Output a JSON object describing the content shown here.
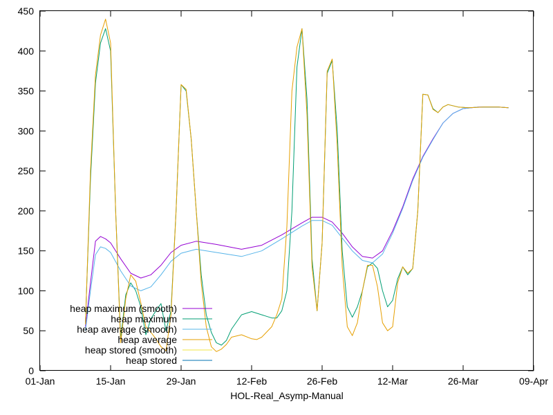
{
  "chart_data": {
    "type": "line",
    "title": "",
    "xlabel": "HOL-Real_Asymp-Manual",
    "ylabel": "",
    "xlim": [
      "2025-01-01",
      "2025-04-09"
    ],
    "ylim": [
      0,
      450
    ],
    "x_ticks": [
      {
        "date": "2025-01-01",
        "label": "01-Jan"
      },
      {
        "date": "2025-01-15",
        "label": "15-Jan"
      },
      {
        "date": "2025-01-29",
        "label": "29-Jan"
      },
      {
        "date": "2025-02-12",
        "label": "12-Feb"
      },
      {
        "date": "2025-02-26",
        "label": "26-Feb"
      },
      {
        "date": "2025-03-12",
        "label": "12-Mar"
      },
      {
        "date": "2025-03-26",
        "label": "26-Mar"
      },
      {
        "date": "2025-04-09",
        "label": "09-Apr"
      }
    ],
    "y_ticks": [
      0,
      50,
      100,
      150,
      200,
      250,
      300,
      350,
      400,
      450
    ],
    "grid": false,
    "legend_position": "bottom-left",
    "series": [
      {
        "name": "heap maximum (smooth)",
        "color": "#9400d3",
        "points": [
          [
            "2025-01-10",
            55
          ],
          [
            "2025-01-11",
            110
          ],
          [
            "2025-01-12",
            162
          ],
          [
            "2025-01-13",
            168
          ],
          [
            "2025-01-14",
            165
          ],
          [
            "2025-01-15",
            160
          ],
          [
            "2025-01-17",
            140
          ],
          [
            "2025-01-19",
            122
          ],
          [
            "2025-01-21",
            116
          ],
          [
            "2025-01-23",
            120
          ],
          [
            "2025-01-25",
            132
          ],
          [
            "2025-01-27",
            148
          ],
          [
            "2025-01-29",
            157
          ],
          [
            "2025-02-01",
            162
          ],
          [
            "2025-02-05",
            158
          ],
          [
            "2025-02-10",
            152
          ],
          [
            "2025-02-14",
            157
          ],
          [
            "2025-02-18",
            170
          ],
          [
            "2025-02-22",
            185
          ],
          [
            "2025-02-24",
            192
          ],
          [
            "2025-02-26",
            192
          ],
          [
            "2025-02-28",
            186
          ],
          [
            "2025-03-02",
            172
          ],
          [
            "2025-03-04",
            155
          ],
          [
            "2025-03-06",
            143
          ],
          [
            "2025-03-08",
            141
          ],
          [
            "2025-03-10",
            150
          ],
          [
            "2025-03-12",
            175
          ],
          [
            "2025-03-14",
            205
          ],
          [
            "2025-03-16",
            240
          ],
          [
            "2025-03-18",
            268
          ],
          [
            "2025-03-20",
            290
          ],
          [
            "2025-03-22",
            310
          ],
          [
            "2025-03-24",
            322
          ],
          [
            "2025-03-26",
            328
          ],
          [
            "2025-03-29",
            330
          ],
          [
            "2025-04-02",
            330
          ],
          [
            "2025-04-04",
            329
          ]
        ]
      },
      {
        "name": "heap maximum",
        "color": "#009e73",
        "points": [
          [
            "2025-01-10",
            60
          ],
          [
            "2025-01-11",
            240
          ],
          [
            "2025-01-12",
            360
          ],
          [
            "2025-01-13",
            410
          ],
          [
            "2025-01-14",
            428
          ],
          [
            "2025-01-15",
            400
          ],
          [
            "2025-01-16",
            200
          ],
          [
            "2025-01-17",
            40
          ],
          [
            "2025-01-18",
            95
          ],
          [
            "2025-01-19",
            110
          ],
          [
            "2025-01-20",
            100
          ],
          [
            "2025-01-21",
            80
          ],
          [
            "2025-01-22",
            45
          ],
          [
            "2025-01-23",
            65
          ],
          [
            "2025-01-24",
            75
          ],
          [
            "2025-01-25",
            84
          ],
          [
            "2025-01-26",
            50
          ],
          [
            "2025-01-27",
            75
          ],
          [
            "2025-01-28",
            200
          ],
          [
            "2025-01-29",
            358
          ],
          [
            "2025-01-30",
            350
          ],
          [
            "2025-01-31",
            290
          ],
          [
            "2025-02-01",
            200
          ],
          [
            "2025-02-02",
            120
          ],
          [
            "2025-02-03",
            70
          ],
          [
            "2025-02-04",
            48
          ],
          [
            "2025-02-05",
            35
          ],
          [
            "2025-02-06",
            32
          ],
          [
            "2025-02-07",
            38
          ],
          [
            "2025-02-08",
            52
          ],
          [
            "2025-02-10",
            70
          ],
          [
            "2025-02-12",
            74
          ],
          [
            "2025-02-14",
            70
          ],
          [
            "2025-02-16",
            66
          ],
          [
            "2025-02-17",
            66
          ],
          [
            "2025-02-18",
            75
          ],
          [
            "2025-02-19",
            100
          ],
          [
            "2025-02-20",
            200
          ],
          [
            "2025-02-21",
            380
          ],
          [
            "2025-02-22",
            428
          ],
          [
            "2025-02-23",
            340
          ],
          [
            "2025-02-24",
            140
          ],
          [
            "2025-02-25",
            75
          ],
          [
            "2025-02-26",
            160
          ],
          [
            "2025-02-27",
            372
          ],
          [
            "2025-02-28",
            388
          ],
          [
            "2025-03-01",
            300
          ],
          [
            "2025-03-02",
            150
          ],
          [
            "2025-03-03",
            80
          ],
          [
            "2025-03-04",
            67
          ],
          [
            "2025-03-05",
            80
          ],
          [
            "2025-03-06",
            100
          ],
          [
            "2025-03-07",
            130
          ],
          [
            "2025-03-08",
            135
          ],
          [
            "2025-03-09",
            128
          ],
          [
            "2025-03-10",
            100
          ],
          [
            "2025-03-11",
            80
          ],
          [
            "2025-03-12",
            88
          ],
          [
            "2025-03-13",
            115
          ],
          [
            "2025-03-14",
            130
          ],
          [
            "2025-03-15",
            120
          ],
          [
            "2025-03-16",
            128
          ],
          [
            "2025-03-17",
            200
          ],
          [
            "2025-03-18",
            346
          ],
          [
            "2025-03-19",
            345
          ],
          [
            "2025-03-20",
            328
          ],
          [
            "2025-03-21",
            323
          ],
          [
            "2025-03-22",
            330
          ],
          [
            "2025-03-23",
            333
          ],
          [
            "2025-03-25",
            330
          ],
          [
            "2025-03-27",
            329
          ],
          [
            "2025-03-30",
            330
          ],
          [
            "2025-04-02",
            330
          ],
          [
            "2025-04-04",
            329
          ]
        ]
      },
      {
        "name": "heap average (smooth)",
        "color": "#56b4e9",
        "points": [
          [
            "2025-01-10",
            50
          ],
          [
            "2025-01-11",
            100
          ],
          [
            "2025-01-12",
            145
          ],
          [
            "2025-01-13",
            155
          ],
          [
            "2025-01-14",
            153
          ],
          [
            "2025-01-15",
            148
          ],
          [
            "2025-01-17",
            125
          ],
          [
            "2025-01-19",
            106
          ],
          [
            "2025-01-21",
            100
          ],
          [
            "2025-01-23",
            105
          ],
          [
            "2025-01-25",
            120
          ],
          [
            "2025-01-27",
            137
          ],
          [
            "2025-01-29",
            147
          ],
          [
            "2025-02-01",
            152
          ],
          [
            "2025-02-05",
            148
          ],
          [
            "2025-02-10",
            143
          ],
          [
            "2025-02-14",
            150
          ],
          [
            "2025-02-18",
            165
          ],
          [
            "2025-02-22",
            181
          ],
          [
            "2025-02-24",
            188
          ],
          [
            "2025-02-26",
            188
          ],
          [
            "2025-02-28",
            182
          ],
          [
            "2025-03-02",
            166
          ],
          [
            "2025-03-04",
            150
          ],
          [
            "2025-03-06",
            138
          ],
          [
            "2025-03-08",
            135
          ],
          [
            "2025-03-10",
            146
          ],
          [
            "2025-03-12",
            172
          ],
          [
            "2025-03-14",
            203
          ],
          [
            "2025-03-16",
            238
          ],
          [
            "2025-03-18",
            267
          ],
          [
            "2025-03-20",
            289
          ],
          [
            "2025-03-22",
            310
          ],
          [
            "2025-03-24",
            322
          ],
          [
            "2025-03-26",
            328
          ],
          [
            "2025-03-29",
            330
          ],
          [
            "2025-04-02",
            330
          ],
          [
            "2025-04-04",
            329
          ]
        ]
      },
      {
        "name": "heap average",
        "color": "#e69f00",
        "points": [
          [
            "2025-01-10",
            58
          ],
          [
            "2025-01-11",
            250
          ],
          [
            "2025-01-12",
            370
          ],
          [
            "2025-01-13",
            420
          ],
          [
            "2025-01-14",
            440
          ],
          [
            "2025-01-15",
            410
          ],
          [
            "2025-01-16",
            200
          ],
          [
            "2025-01-17",
            35
          ],
          [
            "2025-01-18",
            90
          ],
          [
            "2025-01-19",
            120
          ],
          [
            "2025-01-20",
            112
          ],
          [
            "2025-01-21",
            85
          ],
          [
            "2025-01-22",
            55
          ],
          [
            "2025-01-23",
            48
          ],
          [
            "2025-01-24",
            40
          ],
          [
            "2025-01-25",
            30
          ],
          [
            "2025-01-26",
            25
          ],
          [
            "2025-01-27",
            70
          ],
          [
            "2025-01-28",
            200
          ],
          [
            "2025-01-29",
            358
          ],
          [
            "2025-01-30",
            352
          ],
          [
            "2025-01-31",
            290
          ],
          [
            "2025-02-01",
            200
          ],
          [
            "2025-02-02",
            110
          ],
          [
            "2025-02-03",
            55
          ],
          [
            "2025-02-04",
            30
          ],
          [
            "2025-02-05",
            24
          ],
          [
            "2025-02-06",
            27
          ],
          [
            "2025-02-07",
            33
          ],
          [
            "2025-02-08",
            42
          ],
          [
            "2025-02-10",
            45
          ],
          [
            "2025-02-12",
            40
          ],
          [
            "2025-02-13",
            39
          ],
          [
            "2025-02-14",
            42
          ],
          [
            "2025-02-16",
            55
          ],
          [
            "2025-02-17",
            70
          ],
          [
            "2025-02-18",
            90
          ],
          [
            "2025-02-19",
            180
          ],
          [
            "2025-02-20",
            350
          ],
          [
            "2025-02-21",
            405
          ],
          [
            "2025-02-22",
            428
          ],
          [
            "2025-02-23",
            320
          ],
          [
            "2025-02-24",
            130
          ],
          [
            "2025-02-25",
            75
          ],
          [
            "2025-02-26",
            160
          ],
          [
            "2025-02-27",
            375
          ],
          [
            "2025-02-28",
            390
          ],
          [
            "2025-03-01",
            280
          ],
          [
            "2025-03-02",
            130
          ],
          [
            "2025-03-03",
            55
          ],
          [
            "2025-03-04",
            44
          ],
          [
            "2025-03-05",
            60
          ],
          [
            "2025-03-06",
            100
          ],
          [
            "2025-03-07",
            132
          ],
          [
            "2025-03-08",
            132
          ],
          [
            "2025-03-09",
            105
          ],
          [
            "2025-03-10",
            60
          ],
          [
            "2025-03-11",
            50
          ],
          [
            "2025-03-12",
            55
          ],
          [
            "2025-03-13",
            110
          ],
          [
            "2025-03-14",
            130
          ],
          [
            "2025-03-15",
            122
          ],
          [
            "2025-03-16",
            128
          ],
          [
            "2025-03-17",
            200
          ],
          [
            "2025-03-18",
            346
          ],
          [
            "2025-03-19",
            345
          ],
          [
            "2025-03-20",
            327
          ],
          [
            "2025-03-21",
            323
          ],
          [
            "2025-03-22",
            330
          ],
          [
            "2025-03-23",
            333
          ],
          [
            "2025-03-25",
            330
          ],
          [
            "2025-03-27",
            329
          ],
          [
            "2025-03-30",
            330
          ],
          [
            "2025-04-02",
            330
          ],
          [
            "2025-04-04",
            329
          ]
        ]
      },
      {
        "name": "heap stored (smooth)",
        "color": "#f0e442",
        "points": []
      },
      {
        "name": "heap stored",
        "color": "#0072b2",
        "points": []
      }
    ]
  }
}
